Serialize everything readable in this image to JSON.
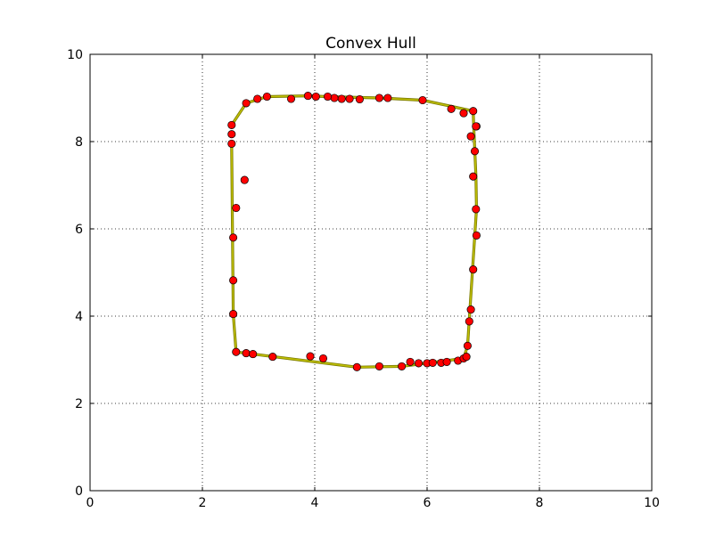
{
  "chart_data": {
    "type": "scatter",
    "title": "Convex Hull",
    "xlabel": "",
    "ylabel": "",
    "xlim": [
      0,
      10
    ],
    "ylim": [
      0,
      10
    ],
    "xticks": [
      "0",
      "2",
      "4",
      "6",
      "8",
      "10"
    ],
    "yticks": [
      "0",
      "2",
      "4",
      "6",
      "8",
      "10"
    ],
    "grid": true,
    "colors": {
      "points": "#ff0000",
      "hull": "#bfbf00",
      "frame": "#000000"
    },
    "series": [
      {
        "kind": "points",
        "x": [
          2.52,
          2.52,
          2.52,
          2.75,
          2.6,
          2.55,
          2.55,
          2.55,
          2.6,
          2.78,
          2.9,
          3.25,
          3.92,
          4.15,
          4.75,
          5.15,
          5.55,
          5.7,
          5.85,
          6.0,
          6.1,
          6.25,
          6.35,
          6.55,
          6.65,
          6.7,
          6.72,
          6.75,
          6.78,
          6.82,
          6.88,
          6.87,
          6.82,
          6.85,
          6.78,
          6.88,
          6.87,
          6.82,
          6.65,
          6.43,
          5.92,
          5.3,
          5.15,
          4.8,
          4.62,
          4.48,
          4.35,
          4.23,
          4.02,
          3.88,
          3.58,
          3.15,
          2.98,
          2.78
        ],
        "y": [
          8.38,
          8.17,
          7.95,
          7.12,
          6.48,
          5.8,
          4.82,
          4.05,
          3.18,
          3.15,
          3.13,
          3.07,
          3.08,
          3.03,
          2.83,
          2.85,
          2.85,
          2.95,
          2.92,
          2.92,
          2.93,
          2.93,
          2.95,
          2.98,
          3.03,
          3.07,
          3.32,
          3.88,
          4.15,
          5.07,
          5.85,
          6.45,
          7.2,
          7.78,
          8.12,
          8.35,
          8.35,
          8.7,
          8.65,
          8.75,
          8.95,
          9.0,
          9.0,
          8.97,
          8.98,
          8.98,
          9.0,
          9.03,
          9.03,
          9.05,
          8.98,
          9.03,
          8.98,
          8.88
        ]
      },
      {
        "kind": "hull",
        "x": [
          2.52,
          2.55,
          2.6,
          4.75,
          5.55,
          6.65,
          6.72,
          6.88,
          6.87,
          6.83,
          6.82,
          5.92,
          5.15,
          4.23,
          3.88,
          3.15,
          2.78,
          2.52
        ],
        "y": [
          7.95,
          4.05,
          3.18,
          2.83,
          2.85,
          3.03,
          3.32,
          6.45,
          7.2,
          8.35,
          8.7,
          8.95,
          9.0,
          9.03,
          9.05,
          9.03,
          8.88,
          8.38
        ]
      }
    ]
  }
}
